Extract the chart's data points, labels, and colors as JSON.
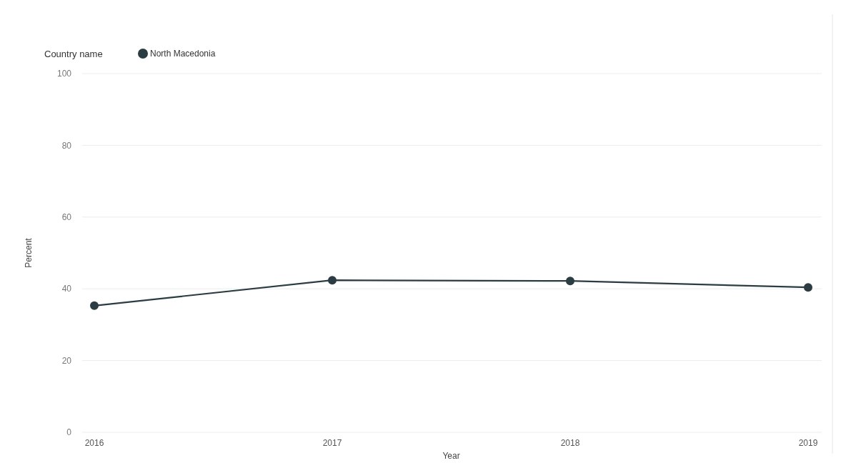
{
  "chart_data": {
    "type": "line",
    "xlabel": "Year",
    "ylabel": "Percent",
    "legend_title": "Country name",
    "categories": [
      "2016",
      "2017",
      "2018",
      "2019"
    ],
    "series": [
      {
        "name": "North Macedonia",
        "color": "#2b3d42",
        "values": [
          35.3,
          42.4,
          42.2,
          40.4
        ]
      }
    ],
    "ylim": [
      0,
      100
    ],
    "yticks": [
      0,
      20,
      40,
      60,
      80,
      100
    ],
    "grid": "y",
    "legend": "top left",
    "marker": "circle",
    "line_style": "solid"
  }
}
